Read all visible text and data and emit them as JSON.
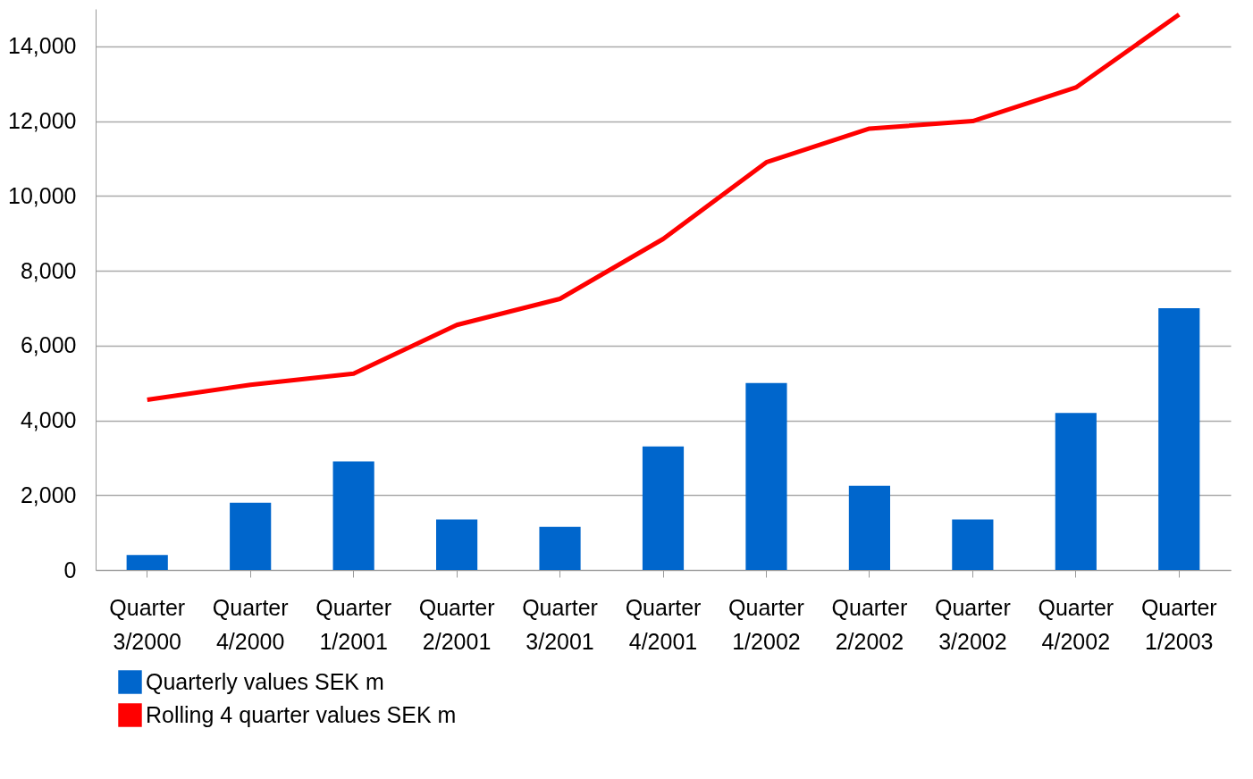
{
  "chart_data": {
    "type": "bar",
    "categories": [
      "Quarter 3/2000",
      "Quarter 4/2000",
      "Quarter 1/2001",
      "Quarter 2/2001",
      "Quarter 3/2001",
      "Quarter 4/2001",
      "Quarter 1/2002",
      "Quarter 2/2002",
      "Quarter 3/2002",
      "Quarter 4/2002",
      "Quarter 1/2003"
    ],
    "series": [
      {
        "name": "Quarterly values SEK m",
        "color": "#0066cc",
        "values": [
          400,
          1800,
          2900,
          1350,
          1150,
          3300,
          5000,
          2250,
          1350,
          4200,
          7000
        ]
      },
      {
        "name": "Rolling 4 quarter values SEK m",
        "type": "line",
        "color": "#ff0000",
        "values": [
          4550,
          4950,
          5250,
          6550,
          7250,
          8850,
          10900,
          11800,
          12000,
          12900,
          14850
        ]
      }
    ],
    "ylim": [
      0,
      15000
    ],
    "yticks": [
      {
        "value": 0,
        "label": "0"
      },
      {
        "value": 2000,
        "label": "2,000"
      },
      {
        "value": 4000,
        "label": "4,000"
      },
      {
        "value": 6000,
        "label": "6,000"
      },
      {
        "value": 8000,
        "label": "8,000"
      },
      {
        "value": 10000,
        "label": "10,000"
      },
      {
        "value": 12000,
        "label": "12,000"
      },
      {
        "value": 14000,
        "label": "14,000"
      }
    ],
    "grid": "y",
    "legend": "bottom left",
    "marker": "none",
    "line_style": "solid"
  }
}
